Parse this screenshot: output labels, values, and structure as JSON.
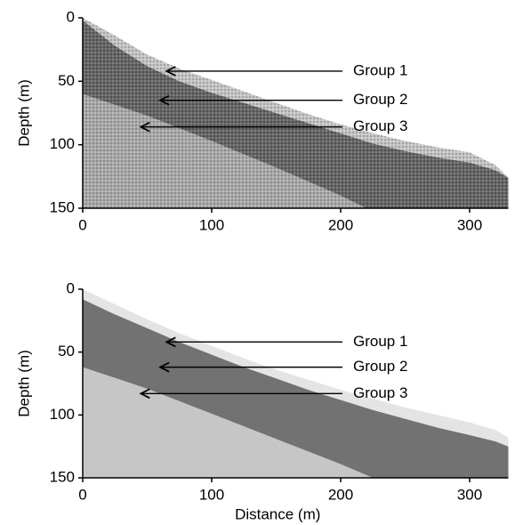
{
  "chart_data": [
    {
      "type": "layers",
      "ylabel": "Depth (m)",
      "xlim": [
        0,
        330
      ],
      "ylim": [
        0,
        150
      ],
      "xticks": [
        0,
        100,
        200,
        300
      ],
      "yticks": [
        0,
        50,
        100,
        150
      ],
      "texture": true,
      "layers": [
        {
          "color": "#646464",
          "x": [
            0,
            25,
            50,
            75,
            100,
            125,
            150,
            175,
            200,
            225,
            250,
            275,
            300,
            320,
            330
          ],
          "top": [
            2,
            22,
            38,
            50,
            59,
            67,
            75,
            83,
            91,
            99,
            105,
            110,
            114,
            120,
            126
          ],
          "bottom": [
            150,
            150,
            150,
            150,
            150,
            150,
            150,
            150,
            150,
            150,
            150,
            150,
            150,
            150,
            150
          ]
        },
        {
          "color": "#a9a9a9",
          "x": [
            0,
            50,
            100,
            150,
            200,
            220
          ],
          "top": [
            60,
            77,
            97,
            118,
            140,
            150
          ],
          "bottom": [
            150,
            150,
            150,
            150,
            150,
            150
          ]
        },
        {
          "color": "#c4c4c4",
          "x": [
            0,
            25,
            50,
            75,
            100,
            125,
            150,
            175,
            200,
            225,
            250,
            275,
            300,
            320,
            330
          ],
          "top": [
            0,
            14,
            29,
            40,
            49,
            58,
            67,
            76,
            84,
            91,
            97,
            102,
            106,
            116,
            126
          ],
          "bottom": [
            2,
            22,
            38,
            50,
            59,
            67,
            75,
            83,
            91,
            99,
            105,
            110,
            114,
            120,
            126
          ]
        }
      ],
      "annotations": [
        {
          "text": "Group 1",
          "x": 65,
          "y": 42
        },
        {
          "text": "Group 2",
          "x": 60,
          "y": 65
        },
        {
          "text": "Group 3",
          "x": 45,
          "y": 86
        }
      ]
    },
    {
      "type": "layers",
      "ylabel": "Depth (m)",
      "xlabel": "Distance (m)",
      "xlim": [
        0,
        330
      ],
      "ylim": [
        0,
        150
      ],
      "xticks": [
        0,
        100,
        200,
        300
      ],
      "yticks": [
        0,
        50,
        100,
        150
      ],
      "texture": false,
      "layers": [
        {
          "color": "#727272",
          "x": [
            0,
            25,
            50,
            75,
            100,
            125,
            150,
            175,
            200,
            225,
            250,
            275,
            300,
            320,
            330
          ],
          "top": [
            8,
            20,
            31,
            42,
            52,
            62,
            71,
            80,
            88,
            96,
            103,
            110,
            116,
            121,
            125
          ],
          "bottom": [
            150,
            150,
            150,
            150,
            150,
            150,
            150,
            150,
            150,
            150,
            150,
            150,
            150,
            150,
            150
          ]
        },
        {
          "color": "#c6c6c6",
          "x": [
            0,
            50,
            100,
            150,
            200,
            225
          ],
          "top": [
            62,
            79,
            99,
            119,
            139,
            150
          ],
          "bottom": [
            150,
            150,
            150,
            150,
            150,
            150
          ]
        },
        {
          "color": "#e4e4e4",
          "x": [
            0,
            25,
            50,
            75,
            100,
            125,
            150,
            175,
            200,
            225,
            250,
            275,
            300,
            320,
            330
          ],
          "top": [
            0,
            12,
            24,
            35,
            45,
            55,
            64,
            72,
            80,
            87,
            94,
            100,
            106,
            112,
            118
          ],
          "bottom": [
            8,
            20,
            31,
            42,
            52,
            62,
            71,
            80,
            88,
            96,
            103,
            110,
            116,
            121,
            125
          ]
        }
      ],
      "annotations": [
        {
          "text": "Group 1",
          "x": 65,
          "y": 42
        },
        {
          "text": "Group 2",
          "x": 60,
          "y": 62
        },
        {
          "text": "Group 3",
          "x": 45,
          "y": 83
        }
      ]
    }
  ]
}
